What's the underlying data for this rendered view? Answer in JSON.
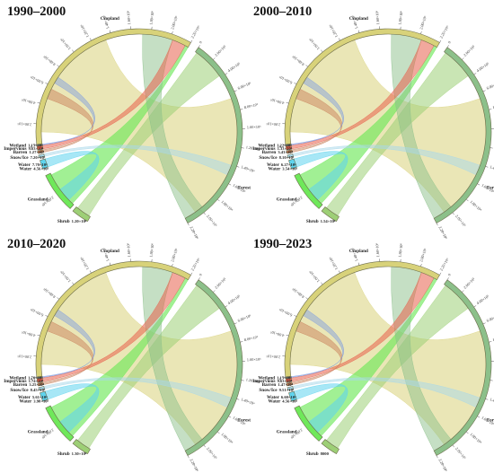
{
  "colors": {
    "Cropland": "#d8d27a",
    "Forest": "#8cc08a",
    "Grassland": "#6fe85a",
    "Shrub": "#9dcf76",
    "Water": "#5fd4ee",
    "Snow/Ice": "#a8d8ea",
    "Barren": "#c9825c",
    "Impervious": "#e8604c",
    "Wetland": "#7d9be0"
  },
  "chart_data": [
    {
      "type": "chord",
      "title": "1990–2000",
      "ticks": {
        "Cropland": [
          "0",
          "2.00×10⁵",
          "4.00×10⁵",
          "6.00×10⁵",
          "8.00×10⁵",
          "1.00×10⁶",
          "1.20×10⁶",
          "1.40×10⁶",
          "1.60×10⁶",
          "1.80×10⁶",
          "2.00×10⁶",
          "2.20×10⁶"
        ],
        "Forest": [
          "0",
          "2.00×10⁵",
          "4.00×10⁵",
          "6.00×10⁵",
          "8.00×10⁵",
          "1.00×10⁶",
          "1.20×10⁶",
          "1.40×10⁶",
          "1.60×10⁶",
          "1.80×10⁶",
          "2.00×10⁶",
          "2.20×10⁶"
        ],
        "Grassland": [
          "2.00×10⁵"
        ]
      },
      "labels": [
        {
          "group": "Wetland",
          "value": "1.15×10⁴"
        },
        {
          "group": "Impervious",
          "value": "9.63×10⁴"
        },
        {
          "group": "Barren",
          "value": "1.27×10⁴"
        },
        {
          "group": "Snow/Ice",
          "value": "7.20×10³"
        },
        {
          "group": "Water",
          "value": "7.70×10⁴"
        },
        {
          "group": "Water",
          "value": "4.56×10⁴"
        },
        {
          "group": "Shrub",
          "value": "1.20×10⁴"
        },
        {
          "group": "Grassland",
          "value": ""
        },
        {
          "group": "Forest",
          "value": ""
        },
        {
          "group": "Cropland",
          "value": ""
        }
      ]
    },
    {
      "type": "chord",
      "title": "2000–2010",
      "ticks": {
        "Cropland": [
          "0",
          "2.00×10⁵",
          "4.00×10⁵",
          "6.00×10⁵",
          "8.00×10⁵",
          "1.00×10⁶",
          "1.20×10⁶",
          "1.40×10⁶",
          "1.60×10⁶",
          "1.80×10⁶",
          "2.00×10⁶",
          "2.20×10⁶"
        ],
        "Forest": [
          "0",
          "2.00×10⁵",
          "4.00×10⁵",
          "6.00×10⁵",
          "8.00×10⁵",
          "1.00×10⁶",
          "1.20×10⁶",
          "1.40×10⁶",
          "1.60×10⁶",
          "1.80×10⁶",
          "2.00×10⁶",
          "2.20×10⁶"
        ],
        "Grassland": [
          "2.00×10⁵"
        ]
      },
      "labels": [
        {
          "group": "Wetland",
          "value": "1.22×10⁴"
        },
        {
          "group": "Impervious",
          "value": "1.33×10⁵"
        },
        {
          "group": "Barren",
          "value": "3.43×10⁴"
        },
        {
          "group": "Snow/Ice",
          "value": "8.10×10³"
        },
        {
          "group": "Water",
          "value": "6.27×10⁴"
        },
        {
          "group": "Water",
          "value": "3.54×10⁴"
        },
        {
          "group": "Shrub",
          "value": "1.54×10⁴"
        },
        {
          "group": "Grassland",
          "value": ""
        },
        {
          "group": "Forest",
          "value": ""
        },
        {
          "group": "Cropland",
          "value": ""
        }
      ]
    },
    {
      "type": "chord",
      "title": "2010–2020",
      "ticks": {
        "Cropland": [
          "0",
          "2.00×10⁵",
          "4.00×10⁵",
          "6.00×10⁵",
          "8.00×10⁵",
          "1.00×10⁶",
          "1.20×10⁶",
          "1.40×10⁶",
          "1.60×10⁶",
          "1.80×10⁶",
          "2.00×10⁶",
          "2.20×10⁶"
        ],
        "Forest": [
          "0",
          "2.00×10⁵",
          "4.00×10⁵",
          "6.00×10⁵",
          "8.00×10⁵",
          "1.00×10⁶",
          "1.20×10⁶",
          "1.40×10⁶",
          "1.60×10⁶",
          "1.80×10⁶",
          "2.00×10⁶",
          "2.20×10⁶"
        ],
        "Grassland": [
          "2.00×10⁵"
        ]
      },
      "labels": [
        {
          "group": "Wetland",
          "value": "1.76×10⁴"
        },
        {
          "group": "Impervious",
          "value": "1.74×10⁵"
        },
        {
          "group": "Barren",
          "value": "3.25×10⁴"
        },
        {
          "group": "Snow/Ice",
          "value": "8.45×10³"
        },
        {
          "group": "Water",
          "value": "5.61×10⁴"
        },
        {
          "group": "Water",
          "value": "3.98×10⁴"
        },
        {
          "group": "Shrub",
          "value": "1.30×10⁴"
        },
        {
          "group": "Grassland",
          "value": ""
        },
        {
          "group": "Forest",
          "value": ""
        },
        {
          "group": "Cropland",
          "value": ""
        }
      ]
    },
    {
      "type": "chord",
      "title": "1990–2023",
      "ticks": {
        "Cropland": [
          "0",
          "2.00×10⁵",
          "4.00×10⁵",
          "6.00×10⁵",
          "8.00×10⁵",
          "1.00×10⁶",
          "1.20×10⁶",
          "1.40×10⁶",
          "1.60×10⁶",
          "1.80×10⁶",
          "2.00×10⁶",
          "2.20×10⁶"
        ],
        "Forest": [
          "0",
          "2.00×10⁵",
          "4.00×10⁵",
          "6.00×10⁵",
          "8.00×10⁵",
          "1.00×10⁶",
          "1.20×10⁶",
          "1.40×10⁶",
          "1.60×10⁶",
          "1.80×10⁶",
          "2.00×10⁶",
          "2.20×10⁶"
        ],
        "Grassland": [
          "2.00×10⁵"
        ]
      },
      "labels": [
        {
          "group": "Wetland",
          "value": "1.15×10⁴"
        },
        {
          "group": "Impervious",
          "value": "9.63×10⁴"
        },
        {
          "group": "Barren",
          "value": "1.47×10⁴"
        },
        {
          "group": "Snow/Ice",
          "value": "9.51×10³"
        },
        {
          "group": "Water",
          "value": "6.60×10⁴"
        },
        {
          "group": "Water",
          "value": "4.56×10⁴"
        },
        {
          "group": "Shrub",
          "value": "8000"
        },
        {
          "group": "Grassland",
          "value": ""
        },
        {
          "group": "Forest",
          "value": ""
        },
        {
          "group": "Cropland",
          "value": ""
        }
      ]
    }
  ]
}
